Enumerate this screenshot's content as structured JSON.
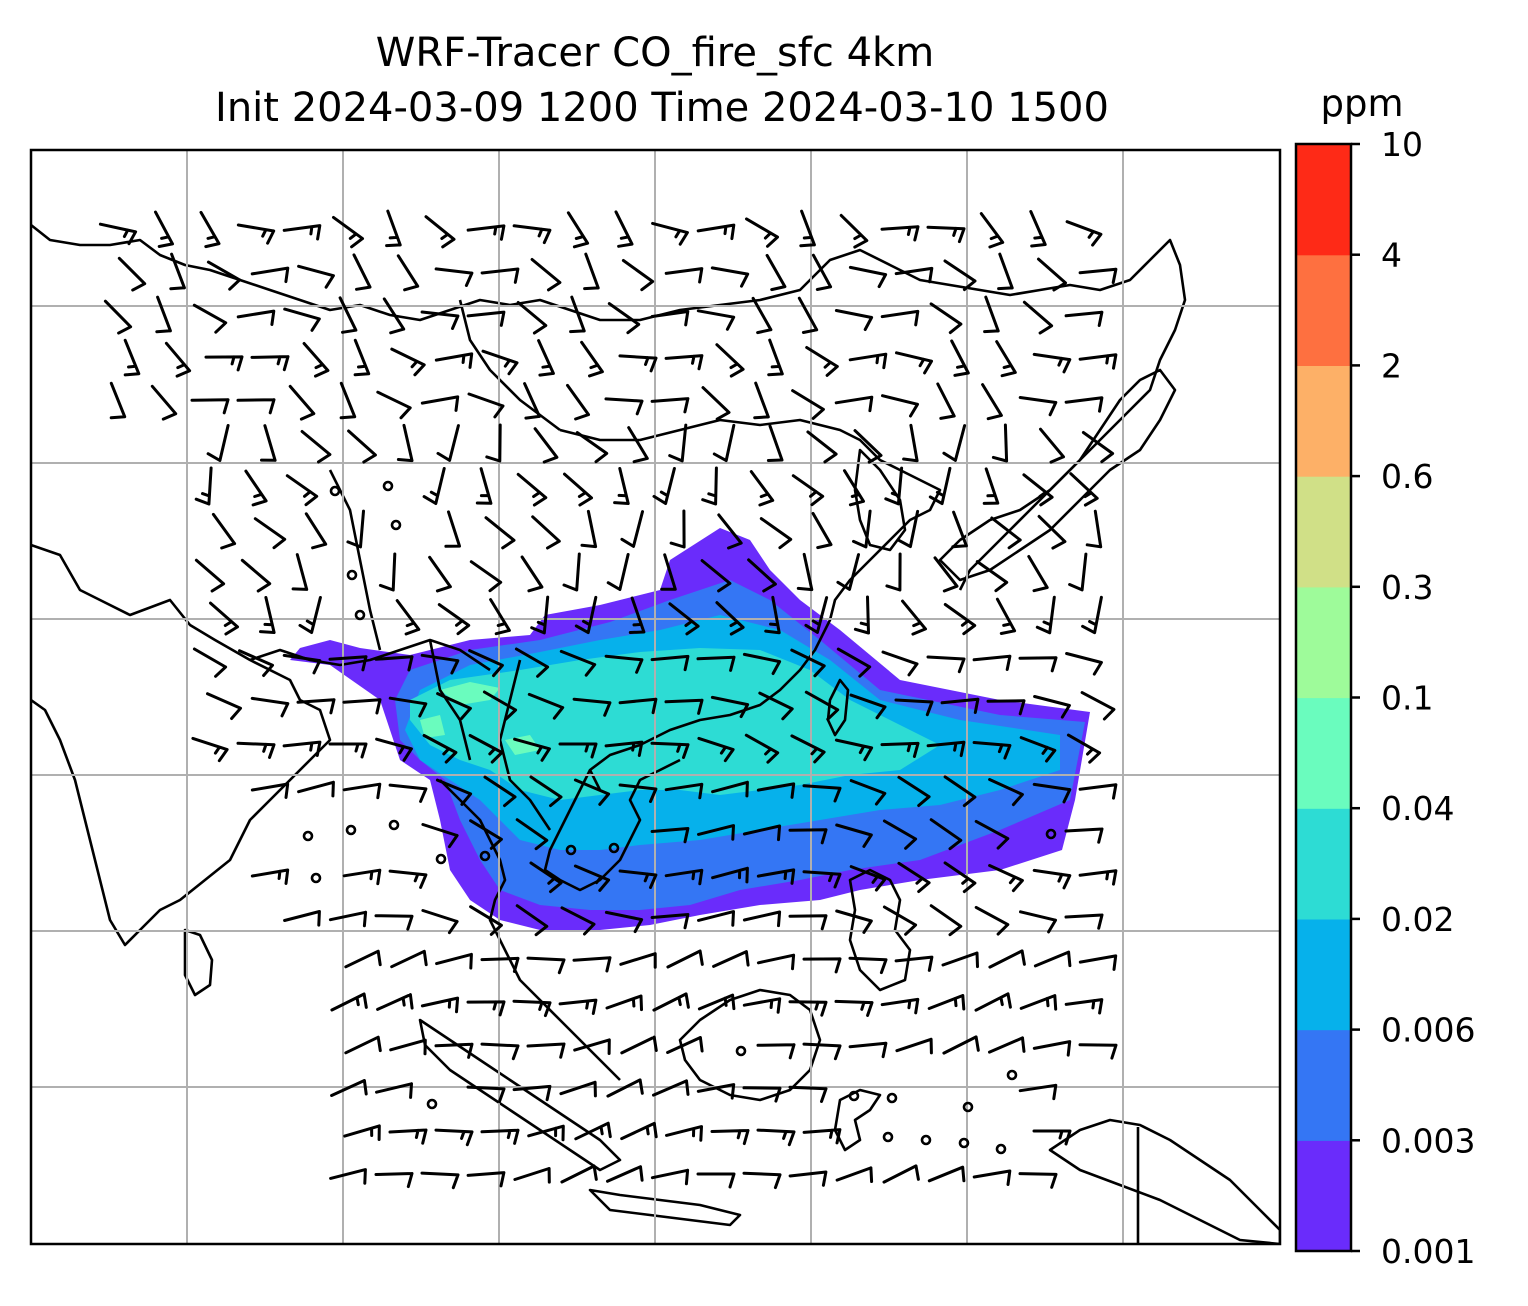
{
  "title": {
    "line1": "WRF-Tracer CO_fire_sfc 4km",
    "line2": "Init 2024-03-09 1200 Time 2024-03-10 1500"
  },
  "colorbar": {
    "unit": "ppm",
    "ticks": [
      "0.001",
      "0.003",
      "0.006",
      "0.02",
      "0.04",
      "0.1",
      "0.3",
      "0.6",
      "2",
      "4",
      "10"
    ],
    "colors": [
      "#6a2cfb",
      "#3476f4",
      "#06b1eb",
      "#2ddcd4",
      "#6afcbe",
      "#9efb9a",
      "#d0e087",
      "#fdb067",
      "#fe7040",
      "#fe2a17"
    ]
  },
  "map": {
    "gridlines": true,
    "plume_colors": [
      "#6a2cfb",
      "#3476f4",
      "#06b1eb",
      "#2ddcd4",
      "#6afcbe"
    ]
  }
}
